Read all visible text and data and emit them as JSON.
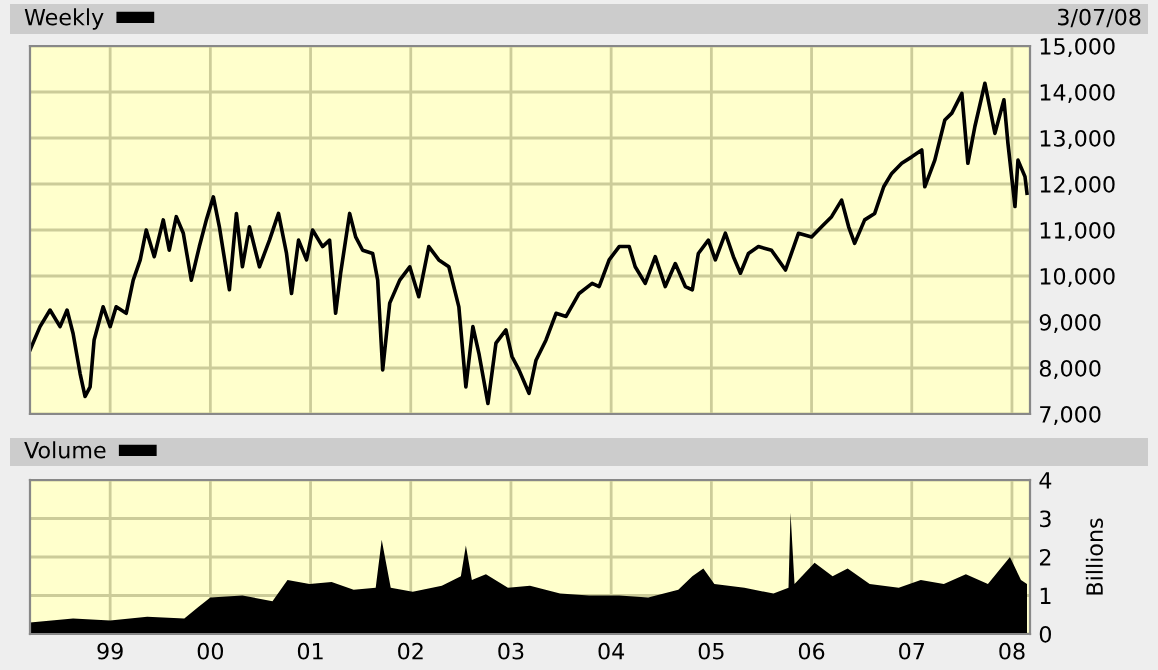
{
  "chart_data": [
    {
      "type": "line",
      "legend": "top left",
      "tick_labels": "y",
      "grid": true,
      "line_style": "solid",
      "annotations": [
        "3/07/08"
      ],
      "xlim": [
        1998.2,
        2008.18
      ],
      "ylim": [
        7000,
        15000
      ],
      "xticks": [
        {
          "value": 1999,
          "label": null
        },
        {
          "value": 2000,
          "label": null
        },
        {
          "value": 2001,
          "label": null
        },
        {
          "value": 2002,
          "label": null
        },
        {
          "value": 2003,
          "label": null
        },
        {
          "value": 2004,
          "label": null
        },
        {
          "value": 2005,
          "label": null
        },
        {
          "value": 2006,
          "label": null
        },
        {
          "value": 2007,
          "label": null
        },
        {
          "value": 2008,
          "label": null
        }
      ],
      "yticks": [
        {
          "value": 7000,
          "label": "7,000"
        },
        {
          "value": 8000,
          "label": "8,000"
        },
        {
          "value": 9000,
          "label": "9,000"
        },
        {
          "value": 10000,
          "label": "10,000"
        },
        {
          "value": 11000,
          "label": "11,000"
        },
        {
          "value": 12000,
          "label": "12,000"
        },
        {
          "value": 13000,
          "label": "13,000"
        },
        {
          "value": 14000,
          "label": "14,000"
        },
        {
          "value": 15000,
          "label": "15,000"
        }
      ],
      "series": [
        {
          "name": "Weekly",
          "color": "#000000",
          "x": [
            1998.2,
            1998.3,
            1998.4,
            1998.5,
            1998.57,
            1998.63,
            1998.7,
            1998.75,
            1998.8,
            1998.84,
            1998.93,
            1999.0,
            1999.06,
            1999.16,
            1999.23,
            1999.3,
            1999.36,
            1999.44,
            1999.53,
            1999.59,
            1999.66,
            1999.73,
            1999.81,
            1999.89,
            1999.96,
            2000.03,
            2000.09,
            2000.19,
            2000.26,
            2000.32,
            2000.39,
            2000.49,
            2000.59,
            2000.68,
            2000.76,
            2000.81,
            2000.88,
            2000.96,
            2001.02,
            2001.12,
            2001.19,
            2001.25,
            2001.3,
            2001.39,
            2001.45,
            2001.52,
            2001.62,
            2001.67,
            2001.72,
            2001.79,
            2001.89,
            2001.99,
            2002.08,
            2002.18,
            2002.28,
            2002.38,
            2002.48,
            2002.55,
            2002.62,
            2002.68,
            2002.77,
            2002.85,
            2002.95,
            2003.01,
            2003.08,
            2003.18,
            2003.25,
            2003.35,
            2003.45,
            2003.55,
            2003.68,
            2003.81,
            2003.88,
            2003.98,
            2004.08,
            2004.18,
            2004.24,
            2004.34,
            2004.44,
            2004.54,
            2004.64,
            2004.74,
            2004.81,
            2004.87,
            2004.97,
            2005.04,
            2005.14,
            2005.22,
            2005.29,
            2005.37,
            2005.47,
            2005.6,
            2005.74,
            2005.87,
            2006.0,
            2006.1,
            2006.2,
            2006.3,
            2006.37,
            2006.43,
            2006.53,
            2006.63,
            2006.72,
            2006.8,
            2006.9,
            2007.0,
            2007.1,
            2007.13,
            2007.23,
            2007.33,
            2007.4,
            2007.5,
            2007.56,
            2007.63,
            2007.73,
            2007.83,
            2007.92,
            2007.96,
            2008.03,
            2008.06,
            2008.13,
            2008.15
          ],
          "values": [
            8390,
            8900,
            9260,
            8900,
            9260,
            8750,
            7880,
            7380,
            7590,
            8610,
            9330,
            8900,
            9330,
            9190,
            9910,
            10350,
            11000,
            10420,
            11220,
            10560,
            11290,
            10930,
            9910,
            10640,
            11220,
            11720,
            11070,
            9700,
            11360,
            10200,
            11070,
            10200,
            10780,
            11360,
            10490,
            9620,
            10780,
            10350,
            11000,
            10640,
            10780,
            9190,
            10060,
            11360,
            10850,
            10560,
            10490,
            9910,
            7960,
            9410,
            9910,
            10200,
            9550,
            10640,
            10350,
            10200,
            9330,
            7590,
            8900,
            8320,
            7230,
            8540,
            8830,
            8250,
            7960,
            7450,
            8170,
            8610,
            9190,
            9120,
            9620,
            9840,
            9770,
            10350,
            10640,
            10640,
            10200,
            9840,
            10420,
            9770,
            10270,
            9770,
            9700,
            10490,
            10780,
            10350,
            10930,
            10420,
            10060,
            10490,
            10640,
            10560,
            10130,
            10930,
            10850,
            11070,
            11290,
            11650,
            11070,
            10710,
            11220,
            11360,
            11940,
            12230,
            12450,
            12590,
            12740,
            11940,
            12520,
            13390,
            13540,
            13970,
            12450,
            13250,
            14190,
            13100,
            13830,
            12880,
            11510,
            12520,
            12160,
            11800
          ]
        }
      ]
    },
    {
      "type": "area",
      "legend": "top left",
      "grid": true,
      "ylabel": "Billions",
      "xlim": [
        1998.2,
        2008.18
      ],
      "ylim": [
        0,
        4
      ],
      "xticks": [
        {
          "value": 1999,
          "label": "99"
        },
        {
          "value": 2000,
          "label": "00"
        },
        {
          "value": 2001,
          "label": "01"
        },
        {
          "value": 2002,
          "label": "02"
        },
        {
          "value": 2003,
          "label": "03"
        },
        {
          "value": 2004,
          "label": "04"
        },
        {
          "value": 2005,
          "label": "05"
        },
        {
          "value": 2006,
          "label": "06"
        },
        {
          "value": 2007,
          "label": "07"
        },
        {
          "value": 2008,
          "label": "08"
        }
      ],
      "yticks": [
        0,
        1,
        2,
        3,
        4
      ],
      "series": [
        {
          "name": "Volume",
          "color": "#000000",
          "x": [
            1998.2,
            1998.63,
            1999.0,
            1999.37,
            1999.74,
            1999.88,
            2000.0,
            2000.32,
            2000.62,
            2000.77,
            2000.99,
            2001.21,
            2001.43,
            2001.65,
            2001.71,
            2001.8,
            2002.02,
            2002.31,
            2002.5,
            2002.55,
            2002.61,
            2002.75,
            2002.97,
            2003.19,
            2003.49,
            2003.78,
            2004.08,
            2004.37,
            2004.67,
            2004.81,
            2004.92,
            2005.03,
            2005.33,
            2005.62,
            2005.77,
            2005.79,
            2005.83,
            2006.03,
            2006.21,
            2006.36,
            2006.58,
            2006.87,
            2007.09,
            2007.32,
            2007.54,
            2007.76,
            2007.98,
            2008.09,
            2008.15
          ],
          "values": [
            0.3,
            0.4,
            0.35,
            0.45,
            0.4,
            0.7,
            0.95,
            1.0,
            0.85,
            1.4,
            1.3,
            1.35,
            1.15,
            1.2,
            2.45,
            1.2,
            1.1,
            1.25,
            1.5,
            2.3,
            1.4,
            1.55,
            1.2,
            1.25,
            1.05,
            1.0,
            1.0,
            0.95,
            1.15,
            1.5,
            1.7,
            1.3,
            1.2,
            1.05,
            1.2,
            3.15,
            1.3,
            1.85,
            1.5,
            1.7,
            1.3,
            1.2,
            1.4,
            1.3,
            1.55,
            1.3,
            2.0,
            1.4,
            1.3
          ]
        }
      ]
    }
  ]
}
